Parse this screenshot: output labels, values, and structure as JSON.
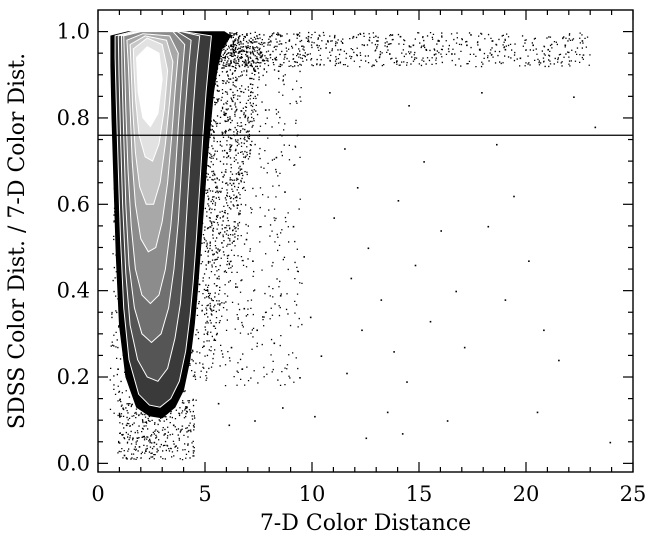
{
  "chart_data": {
    "type": "scatter",
    "title": "",
    "xlabel": "7-D Color Distance",
    "ylabel": "SDSS Color Dist. / 7-D Color Dist.",
    "xlim": [
      0,
      25
    ],
    "ylim": [
      -0.02,
      1.05
    ],
    "xticks": [
      {
        "value": 0,
        "label": "0"
      },
      {
        "value": 5,
        "label": "5"
      },
      {
        "value": 10,
        "label": "10"
      },
      {
        "value": 15,
        "label": "15"
      },
      {
        "value": 20,
        "label": "20"
      },
      {
        "value": 25,
        "label": "25"
      }
    ],
    "yticks": [
      {
        "value": 0.0,
        "label": "0.0"
      },
      {
        "value": 0.2,
        "label": "0.2"
      },
      {
        "value": 0.4,
        "label": "0.4"
      },
      {
        "value": 0.6,
        "label": "0.6"
      },
      {
        "value": 0.8,
        "label": "0.8"
      },
      {
        "value": 1.0,
        "label": "1.0"
      }
    ],
    "grid": false,
    "legend": "none",
    "reference_lines": [
      {
        "orientation": "horizontal",
        "y": 0.76,
        "color": "#000000"
      }
    ],
    "density_contours": {
      "levels": [
        {
          "fill": "#000000",
          "points": [
            [
              0.6,
              0.99
            ],
            [
              1.4,
              1.0
            ],
            [
              4.2,
              1.0
            ],
            [
              5.9,
              1.0
            ],
            [
              6.2,
              0.99
            ],
            [
              5.8,
              0.96
            ],
            [
              5.6,
              0.92
            ],
            [
              5.4,
              0.86
            ],
            [
              5.25,
              0.78
            ],
            [
              5.1,
              0.7
            ],
            [
              4.95,
              0.6
            ],
            [
              4.8,
              0.5
            ],
            [
              4.65,
              0.4
            ],
            [
              4.5,
              0.32
            ],
            [
              4.3,
              0.24
            ],
            [
              4.0,
              0.17
            ],
            [
              3.6,
              0.13
            ],
            [
              3.0,
              0.105
            ],
            [
              2.4,
              0.11
            ],
            [
              1.8,
              0.13
            ],
            [
              1.3,
              0.2
            ],
            [
              1.0,
              0.32
            ],
            [
              0.85,
              0.48
            ],
            [
              0.75,
              0.64
            ],
            [
              0.65,
              0.8
            ],
            [
              0.6,
              0.92
            ]
          ]
        },
        {
          "fill": "#3a3a3a",
          "points": [
            [
              0.8,
              0.99
            ],
            [
              1.6,
              1.0
            ],
            [
              4.0,
              1.0
            ],
            [
              5.3,
              0.99
            ],
            [
              5.2,
              0.94
            ],
            [
              5.05,
              0.86
            ],
            [
              4.9,
              0.76
            ],
            [
              4.75,
              0.64
            ],
            [
              4.6,
              0.52
            ],
            [
              4.45,
              0.42
            ],
            [
              4.3,
              0.34
            ],
            [
              4.1,
              0.26
            ],
            [
              3.8,
              0.19
            ],
            [
              3.4,
              0.15
            ],
            [
              2.9,
              0.13
            ],
            [
              2.4,
              0.135
            ],
            [
              1.9,
              0.16
            ],
            [
              1.45,
              0.24
            ],
            [
              1.2,
              0.36
            ],
            [
              1.05,
              0.52
            ],
            [
              0.95,
              0.68
            ],
            [
              0.85,
              0.84
            ],
            [
              0.8,
              0.94
            ]
          ]
        },
        {
          "fill": "#555555",
          "points": [
            [
              0.95,
              0.99
            ],
            [
              1.8,
              1.0
            ],
            [
              3.9,
              1.0
            ],
            [
              4.75,
              0.99
            ],
            [
              4.6,
              0.92
            ],
            [
              4.45,
              0.82
            ],
            [
              4.3,
              0.7
            ],
            [
              4.15,
              0.58
            ],
            [
              4.0,
              0.46
            ],
            [
              3.85,
              0.37
            ],
            [
              3.6,
              0.29
            ],
            [
              3.25,
              0.22
            ],
            [
              2.8,
              0.19
            ],
            [
              2.3,
              0.2
            ],
            [
              1.85,
              0.24
            ],
            [
              1.5,
              0.32
            ],
            [
              1.3,
              0.44
            ],
            [
              1.15,
              0.6
            ],
            [
              1.05,
              0.76
            ],
            [
              0.98,
              0.9
            ]
          ]
        },
        {
          "fill": "#707070",
          "points": [
            [
              1.1,
              0.99
            ],
            [
              1.9,
              1.0
            ],
            [
              3.7,
              1.0
            ],
            [
              4.35,
              0.98
            ],
            [
              4.2,
              0.9
            ],
            [
              4.05,
              0.8
            ],
            [
              3.9,
              0.68
            ],
            [
              3.75,
              0.56
            ],
            [
              3.55,
              0.45
            ],
            [
              3.3,
              0.36
            ],
            [
              2.95,
              0.3
            ],
            [
              2.5,
              0.28
            ],
            [
              2.05,
              0.3
            ],
            [
              1.7,
              0.36
            ],
            [
              1.45,
              0.46
            ],
            [
              1.3,
              0.6
            ],
            [
              1.2,
              0.76
            ],
            [
              1.12,
              0.9
            ]
          ]
        },
        {
          "fill": "#8c8c8c",
          "points": [
            [
              1.2,
              0.99
            ],
            [
              2.0,
              1.0
            ],
            [
              3.5,
              1.0
            ],
            [
              4.05,
              0.97
            ],
            [
              3.9,
              0.88
            ],
            [
              3.75,
              0.78
            ],
            [
              3.6,
              0.66
            ],
            [
              3.4,
              0.55
            ],
            [
              3.15,
              0.45
            ],
            [
              2.85,
              0.39
            ],
            [
              2.45,
              0.37
            ],
            [
              2.05,
              0.39
            ],
            [
              1.75,
              0.45
            ],
            [
              1.55,
              0.55
            ],
            [
              1.4,
              0.68
            ],
            [
              1.3,
              0.82
            ],
            [
              1.24,
              0.93
            ]
          ]
        },
        {
          "fill": "#a8a8a8",
          "points": [
            [
              1.35,
              0.98
            ],
            [
              2.1,
              0.995
            ],
            [
              3.35,
              0.99
            ],
            [
              3.75,
              0.95
            ],
            [
              3.6,
              0.86
            ],
            [
              3.45,
              0.76
            ],
            [
              3.25,
              0.65
            ],
            [
              3.0,
              0.56
            ],
            [
              2.7,
              0.5
            ],
            [
              2.35,
              0.49
            ],
            [
              2.0,
              0.52
            ],
            [
              1.75,
              0.6
            ],
            [
              1.6,
              0.7
            ],
            [
              1.5,
              0.82
            ],
            [
              1.42,
              0.92
            ]
          ]
        },
        {
          "fill": "#c6c6c6",
          "points": [
            [
              1.5,
              0.97
            ],
            [
              2.2,
              0.99
            ],
            [
              3.2,
              0.98
            ],
            [
              3.5,
              0.93
            ],
            [
              3.35,
              0.84
            ],
            [
              3.15,
              0.74
            ],
            [
              2.9,
              0.65
            ],
            [
              2.6,
              0.6
            ],
            [
              2.25,
              0.6
            ],
            [
              1.95,
              0.64
            ],
            [
              1.75,
              0.72
            ],
            [
              1.62,
              0.82
            ],
            [
              1.55,
              0.91
            ]
          ]
        },
        {
          "fill": "#e2e2e2",
          "points": [
            [
              1.65,
              0.96
            ],
            [
              2.3,
              0.985
            ],
            [
              3.0,
              0.97
            ],
            [
              3.25,
              0.91
            ],
            [
              3.1,
              0.82
            ],
            [
              2.85,
              0.74
            ],
            [
              2.55,
              0.7
            ],
            [
              2.2,
              0.71
            ],
            [
              1.92,
              0.76
            ],
            [
              1.76,
              0.84
            ],
            [
              1.68,
              0.91
            ]
          ]
        },
        {
          "fill": "#ffffff",
          "points": [
            [
              1.8,
              0.94
            ],
            [
              2.3,
              0.965
            ],
            [
              2.85,
              0.95
            ],
            [
              3.0,
              0.89
            ],
            [
              2.8,
              0.81
            ],
            [
              2.45,
              0.78
            ],
            [
              2.1,
              0.8
            ],
            [
              1.88,
              0.86
            ]
          ]
        }
      ]
    },
    "outlier_points_sample": [
      [
        6.2,
        0.97
      ],
      [
        6.8,
        0.93
      ],
      [
        7.1,
        0.88
      ],
      [
        7.5,
        0.96
      ],
      [
        8.0,
        0.99
      ],
      [
        8.4,
        0.91
      ],
      [
        8.9,
        0.98
      ],
      [
        9.3,
        0.95
      ],
      [
        9.8,
        0.99
      ],
      [
        10.2,
        0.97
      ],
      [
        10.7,
        0.98
      ],
      [
        11.3,
        0.96
      ],
      [
        11.9,
        0.99
      ],
      [
        12.4,
        0.97
      ],
      [
        13.0,
        0.98
      ],
      [
        13.6,
        0.95
      ],
      [
        14.1,
        0.99
      ],
      [
        14.7,
        0.97
      ],
      [
        15.3,
        0.96
      ],
      [
        15.9,
        0.98
      ],
      [
        16.5,
        0.95
      ],
      [
        17.2,
        0.97
      ],
      [
        17.8,
        0.96
      ],
      [
        18.4,
        0.98
      ],
      [
        19.0,
        0.96
      ],
      [
        19.7,
        0.94
      ],
      [
        20.3,
        0.97
      ],
      [
        21.0,
        0.96
      ],
      [
        21.8,
        0.97
      ],
      [
        22.6,
        0.98
      ],
      [
        6.0,
        0.72
      ],
      [
        6.3,
        0.65
      ],
      [
        6.6,
        0.58
      ],
      [
        6.9,
        0.52
      ],
      [
        7.2,
        0.47
      ],
      [
        6.4,
        0.41
      ],
      [
        6.8,
        0.36
      ],
      [
        7.4,
        0.31
      ],
      [
        6.2,
        0.27
      ],
      [
        6.7,
        0.22
      ],
      [
        7.8,
        0.82
      ],
      [
        8.3,
        0.71
      ],
      [
        8.7,
        0.63
      ],
      [
        9.1,
        0.55
      ],
      [
        9.6,
        0.48
      ],
      [
        8.5,
        0.39
      ],
      [
        9.9,
        0.34
      ],
      [
        8.2,
        0.28
      ],
      [
        10.4,
        0.25
      ],
      [
        9.4,
        0.2
      ],
      [
        10.8,
        0.86
      ],
      [
        11.5,
        0.73
      ],
      [
        12.1,
        0.64
      ],
      [
        11.0,
        0.57
      ],
      [
        12.6,
        0.5
      ],
      [
        11.8,
        0.43
      ],
      [
        13.2,
        0.38
      ],
      [
        12.3,
        0.31
      ],
      [
        13.8,
        0.26
      ],
      [
        11.6,
        0.21
      ],
      [
        14.5,
        0.83
      ],
      [
        15.2,
        0.7
      ],
      [
        14.0,
        0.61
      ],
      [
        16.0,
        0.54
      ],
      [
        14.8,
        0.46
      ],
      [
        16.7,
        0.4
      ],
      [
        15.5,
        0.33
      ],
      [
        17.1,
        0.27
      ],
      [
        14.4,
        0.19
      ],
      [
        13.5,
        0.12
      ],
      [
        17.9,
        0.86
      ],
      [
        18.6,
        0.74
      ],
      [
        19.4,
        0.62
      ],
      [
        18.2,
        0.55
      ],
      [
        20.1,
        0.47
      ],
      [
        19.0,
        0.38
      ],
      [
        20.8,
        0.31
      ],
      [
        21.5,
        0.24
      ],
      [
        20.5,
        0.12
      ],
      [
        22.2,
        0.85
      ],
      [
        23.2,
        0.78
      ],
      [
        23.9,
        0.05
      ],
      [
        14.2,
        0.07
      ],
      [
        12.5,
        0.06
      ],
      [
        10.1,
        0.11
      ],
      [
        8.6,
        0.13
      ],
      [
        7.3,
        0.1
      ],
      [
        6.1,
        0.09
      ],
      [
        5.6,
        0.14
      ],
      [
        16.3,
        0.1
      ],
      [
        1.0,
        0.15
      ],
      [
        1.3,
        0.09
      ],
      [
        1.6,
        0.06
      ],
      [
        1.9,
        0.04
      ],
      [
        2.2,
        0.03
      ],
      [
        2.6,
        0.05
      ],
      [
        3.1,
        0.07
      ],
      [
        3.5,
        0.09
      ],
      [
        1.2,
        0.02
      ],
      [
        0.9,
        0.22
      ]
    ]
  }
}
